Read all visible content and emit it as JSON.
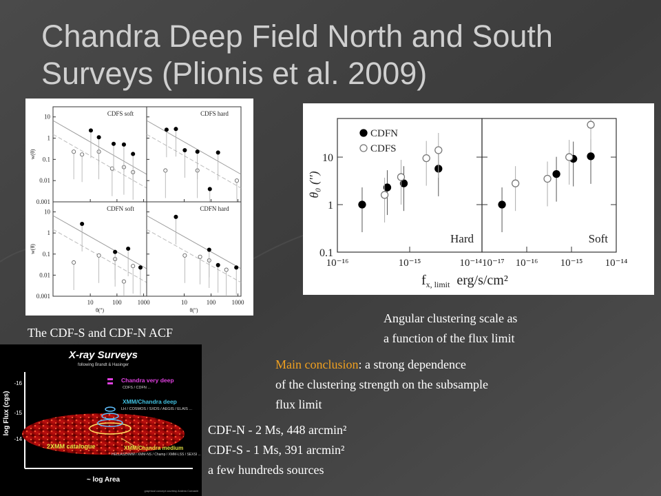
{
  "title": [
    "Chandra Deep Field North and South",
    "Surveys  (Plionis et al. 2009)"
  ],
  "left_figure": {
    "caption": "The CDF-S and CDF-N  ACF",
    "y_label": "w(θ)",
    "x_label": "θ('')",
    "xlim": [
      0.4,
      1300
    ],
    "xticks": [
      10,
      100,
      1000
    ],
    "ylim": [
      0.001,
      30
    ],
    "yticks": [
      10,
      1,
      0.1,
      0.01,
      0.001
    ],
    "log": true,
    "panels": [
      {
        "title": "CDFS soft",
        "filled": {
          "x": [
            10.5,
            21,
            75,
            182,
            400
          ],
          "y": [
            2.3,
            1.1,
            0.54,
            0.5,
            0.18
          ]
        },
        "open": {
          "x": [
            2.4,
            4.9,
            21,
            66,
            182,
            400
          ],
          "y": [
            0.23,
            0.17,
            0.23,
            0.037,
            0.043,
            0.025
          ]
        }
      },
      {
        "title": "CDFS hard",
        "filled": {
          "x": [
            2.2,
            4.9,
            10.5,
            31,
            90,
            182
          ],
          "y": [
            2.5,
            2.7,
            0.27,
            0.23,
            0.004,
            0.21
          ]
        },
        "open": {
          "x": [
            2.0,
            31,
            910
          ],
          "y": [
            0.03,
            0.03,
            0.01
          ]
        }
      },
      {
        "title": "CDFN soft",
        "filled": {
          "x": [
            4.9,
            85,
            263,
            760
          ],
          "y": [
            2.7,
            0.126,
            0.18,
            0.023
          ]
        },
        "open": {
          "x": [
            2.4,
            21,
            85,
            182,
            400
          ],
          "y": [
            0.04,
            0.086,
            0.058,
            0.005,
            0.027
          ]
        }
      },
      {
        "title": "CDFN hard",
        "filled": {
          "x": [
            4.9,
            85,
            182,
            870
          ],
          "y": [
            5.8,
            0.16,
            0.03,
            0.023
          ]
        },
        "open": {
          "x": [
            10.5,
            39,
            85,
            370
          ],
          "y": [
            0.086,
            0.074,
            0.05,
            0.018
          ]
        }
      }
    ]
  },
  "right_figure": {
    "caption": [
      "Angular clustering scale as",
      "a function of the flux limit"
    ],
    "y_label": "θ₀ ('')",
    "x_label": "f",
    "x_label_sub": "x, limit",
    "x_label_unit": "erg/s/cm²",
    "ylim": [
      0.1,
      65
    ],
    "yticks": [
      0.1,
      1,
      10
    ],
    "log": true,
    "series": [
      {
        "name": "CDFN",
        "marker": "filled"
      },
      {
        "name": "CDFS",
        "marker": "open"
      }
    ],
    "panels": [
      {
        "label": "Hard",
        "xlim": [
          1e-16,
          1e-14
        ],
        "xticks": [
          {
            "value": 1e-16,
            "label": "10⁻¹⁶"
          },
          {
            "value": 1e-15,
            "label": "10⁻¹⁵"
          },
          {
            "value": 1e-14,
            "label": "10⁻¹⁴"
          }
        ],
        "points": [
          {
            "x": [
              2.2e-16,
              4.9e-16,
              8.3e-16,
              2.5e-15
            ],
            "y": [
              1.0,
              2.3,
              2.8,
              5.7
            ]
          },
          {
            "x": [
              4.5e-16,
              7.6e-16,
              1.7e-15,
              2.5e-15
            ],
            "y": [
              1.6,
              3.8,
              9.5,
              14
            ]
          }
        ]
      },
      {
        "label": "Soft",
        "xlim": [
          1e-17,
          1e-14
        ],
        "xticks": [
          {
            "value": 1e-17,
            "label": "10⁻¹⁷"
          },
          {
            "value": 1e-16,
            "label": "10⁻¹⁶"
          },
          {
            "value": 1e-15,
            "label": "10⁻¹⁵"
          },
          {
            "value": 1e-14,
            "label": "10⁻¹⁴"
          }
        ],
        "points": [
          {
            "x": [
              2.8e-17,
              4.6e-16,
              1.1e-15,
              2.7e-15
            ],
            "y": [
              1.0,
              4.4,
              9.2,
              10.4
            ]
          },
          {
            "x": [
              5.6e-17,
              2.9e-16,
              8.9e-16,
              2.7e-15
            ],
            "y": [
              2.8,
              3.5,
              10,
              48
            ]
          }
        ]
      }
    ]
  },
  "conclusion": {
    "label": "Main conclusion",
    "lines": [
      ": a strong dependence",
      "of the clustering strength on the subsample",
      "flux limit"
    ]
  },
  "surveys": [
    "CDF-N  - 2 Ms, 448 arcmin²",
    "CDF-S - 1 Ms, 391 arcmin²",
    "a few hundreds sources"
  ],
  "diagram": {
    "title": "X-ray Surveys",
    "subtitle": "following Brandt & Hasinger",
    "y_label": "log Flux (cgs)",
    "y_ticks": [
      "-16",
      "-15",
      "-14"
    ],
    "x_label": "~ log Area",
    "tiers": [
      {
        "name": "Chandra very deep",
        "fields": "CDFS / CDFN ..."
      },
      {
        "name": "XMM/Chandra deep",
        "fields": "LH / COSMOS / SXDS / AEGIS / ELAIS ..."
      },
      {
        "name": "XMM/Chandra medium",
        "fields": "HELLAS2XMM / XMM-NS / Champ / XMM-LSS / SEXSI ..."
      }
    ],
    "catalogue": "2XMM catalogue",
    "credit": "graphical concept courtesy Andrea Comastri"
  }
}
